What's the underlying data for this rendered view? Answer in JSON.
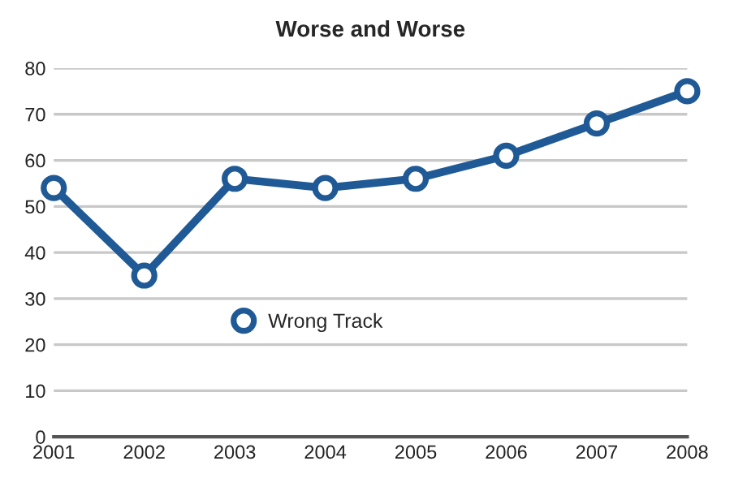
{
  "chart_data": {
    "type": "line",
    "title": "Worse and Worse",
    "x": [
      2001,
      2002,
      2003,
      2004,
      2005,
      2006,
      2007,
      2008
    ],
    "series": [
      {
        "name": "Wrong Track",
        "color": "#1f5a96",
        "values": [
          54,
          35,
          56,
          54,
          56,
          61,
          68,
          75
        ]
      }
    ],
    "xlim": [
      2001,
      2008
    ],
    "xticks": [
      2001,
      2002,
      2003,
      2004,
      2005,
      2006,
      2007,
      2008
    ],
    "ylim": [
      0,
      80
    ],
    "yticks": [
      0,
      10,
      20,
      30,
      40,
      50,
      60,
      70,
      80
    ],
    "grid": "y",
    "legend": "center",
    "marker": "circle",
    "line_style": "solid"
  }
}
